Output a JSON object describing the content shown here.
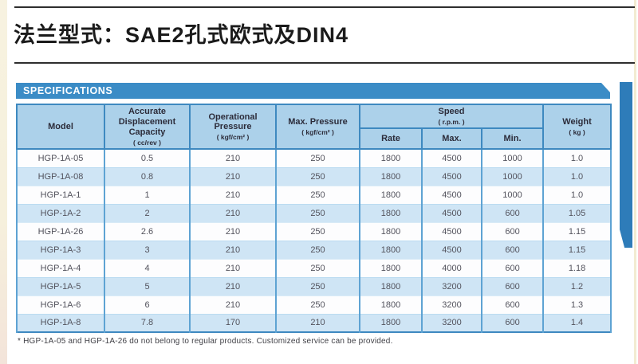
{
  "page": {
    "title": "法兰型式：SAE2孔式欧式及DIN4",
    "section_header": "SPECIFICATIONS",
    "footnote": "* HGP-1A-05 and HGP-1A-26 do not belong to regular products. Customized service can be provided."
  },
  "colors": {
    "section_bar_blue": "#3b8cc6",
    "right_stripe_blue": "#2e7cb9",
    "header_cell_blue": "#acd1ea",
    "row_alt_blue": "#cfe5f5",
    "table_border_blue": "#3e89c0"
  },
  "specs_table": {
    "headers": {
      "model": {
        "label": "Model"
      },
      "displacement": {
        "label": "Accurate Displacement Capacity",
        "unit": "( cc/rev )"
      },
      "operational_pressure": {
        "label": "Operational Pressure",
        "unit": "( kgf/cm² )"
      },
      "max_pressure": {
        "label": "Max. Pressure",
        "unit": "( kgf/cm² )"
      },
      "speed": {
        "label": "Speed",
        "unit": "( r.p.m. )"
      },
      "speed_sub": {
        "rate": "Rate",
        "max": "Max.",
        "min": "Min."
      },
      "weight": {
        "label": "Weight",
        "unit": "( kg )"
      }
    },
    "rows": [
      [
        "HGP-1A-05",
        "0.5",
        "210",
        "250",
        "1800",
        "4500",
        "1000",
        "1.0"
      ],
      [
        "HGP-1A-08",
        "0.8",
        "210",
        "250",
        "1800",
        "4500",
        "1000",
        "1.0"
      ],
      [
        "HGP-1A-1",
        "1",
        "210",
        "250",
        "1800",
        "4500",
        "1000",
        "1.0"
      ],
      [
        "HGP-1A-2",
        "2",
        "210",
        "250",
        "1800",
        "4500",
        "600",
        "1.05"
      ],
      [
        "HGP-1A-26",
        "2.6",
        "210",
        "250",
        "1800",
        "4500",
        "600",
        "1.15"
      ],
      [
        "HGP-1A-3",
        "3",
        "210",
        "250",
        "1800",
        "4500",
        "600",
        "1.15"
      ],
      [
        "HGP-1A-4",
        "4",
        "210",
        "250",
        "1800",
        "4000",
        "600",
        "1.18"
      ],
      [
        "HGP-1A-5",
        "5",
        "210",
        "250",
        "1800",
        "3200",
        "600",
        "1.2"
      ],
      [
        "HGP-1A-6",
        "6",
        "210",
        "250",
        "1800",
        "3200",
        "600",
        "1.3"
      ],
      [
        "HGP-1A-8",
        "7.8",
        "170",
        "210",
        "1800",
        "3200",
        "600",
        "1.4"
      ]
    ]
  }
}
